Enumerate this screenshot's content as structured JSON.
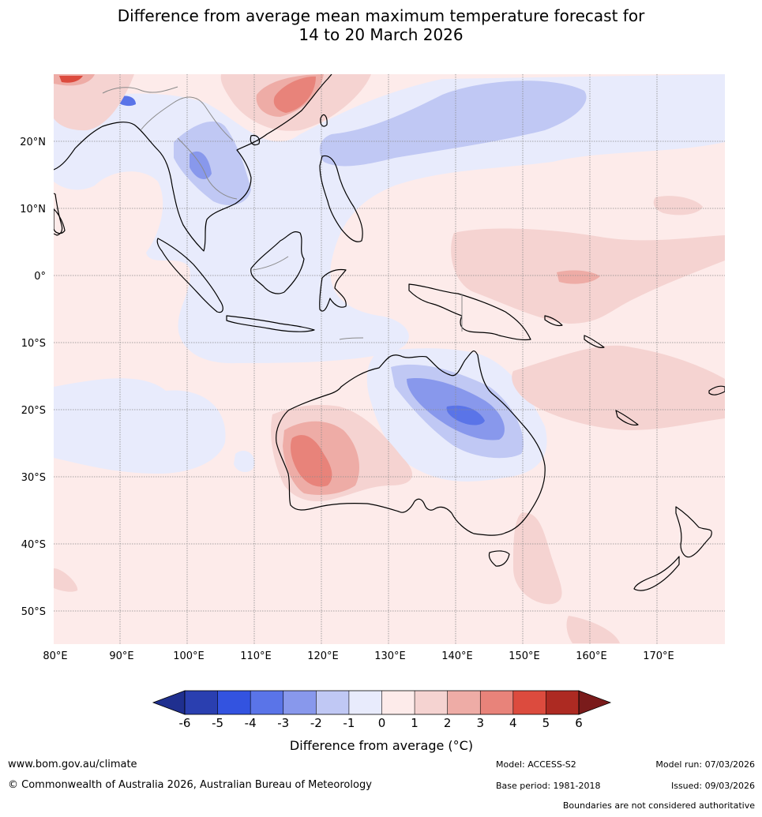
{
  "title": {
    "line1": "Difference from average mean maximum temperature forecast for",
    "line2": "14 to 20 March 2026"
  },
  "map": {
    "lon_range": [
      80,
      180
    ],
    "lat_range": [
      -55,
      30
    ],
    "lon_ticks": [
      {
        "value": 80,
        "label": "80°E"
      },
      {
        "value": 90,
        "label": "90°E"
      },
      {
        "value": 100,
        "label": "100°E"
      },
      {
        "value": 110,
        "label": "110°E"
      },
      {
        "value": 120,
        "label": "120°E"
      },
      {
        "value": 130,
        "label": "130°E"
      },
      {
        "value": 140,
        "label": "140°E"
      },
      {
        "value": 150,
        "label": "150°E"
      },
      {
        "value": 160,
        "label": "160°E"
      },
      {
        "value": 170,
        "label": "170°E"
      }
    ],
    "lat_ticks": [
      {
        "value": 20,
        "label": "20°N"
      },
      {
        "value": 10,
        "label": "10°N"
      },
      {
        "value": 0,
        "label": "0°"
      },
      {
        "value": -10,
        "label": "10°S"
      },
      {
        "value": -20,
        "label": "20°S"
      },
      {
        "value": -30,
        "label": "30°S"
      },
      {
        "value": -40,
        "label": "40°S"
      },
      {
        "value": -50,
        "label": "50°S"
      }
    ]
  },
  "colorbar": {
    "ticks": [
      "-6",
      "-5",
      "-4",
      "-3",
      "-2",
      "-1",
      "0",
      "1",
      "2",
      "3",
      "4",
      "5",
      "6"
    ],
    "colors": [
      "#1f2f8f",
      "#2a3fb0",
      "#3353e0",
      "#5a74e8",
      "#8898ec",
      "#c0c8f4",
      "#e8ebfc",
      "#fdebea",
      "#f5d3d1",
      "#eeaca6",
      "#e8837a",
      "#dc4b3e",
      "#ad2a22",
      "#7a1b1b"
    ],
    "label": "Difference from average (°C)"
  },
  "footer": {
    "website": "www.bom.gov.au/climate",
    "copyright": "© Commonwealth of Australia 2026, Australian Bureau of Meteorology",
    "model": "Model: ACCESS-S2",
    "base_period": "Base period: 1981-2018",
    "model_run": "Model run: 07/03/2026",
    "issued": "Issued: 09/03/2026",
    "disclaimer": "Boundaries are not considered authoritative"
  }
}
